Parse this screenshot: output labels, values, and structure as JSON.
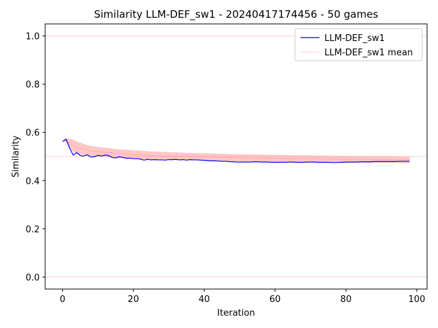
{
  "chart_data": {
    "type": "line",
    "title": "Similarity LLM-DEF_sw1 - 20240417174456 - 50 games",
    "xlabel": "Iteration",
    "ylabel": "Similarity",
    "xlim": [
      -4.9,
      102.9
    ],
    "ylim": [
      -0.05,
      1.05
    ],
    "xticks": [
      0,
      20,
      40,
      60,
      80,
      100
    ],
    "yticks": [
      0.0,
      0.2,
      0.4,
      0.6,
      0.8,
      1.0
    ],
    "xtick_labels": [
      "0",
      "20",
      "40",
      "60",
      "80",
      "100"
    ],
    "ytick_labels": [
      "0.0",
      "0.2",
      "0.4",
      "0.6",
      "0.8",
      "1.0"
    ],
    "reference_lines": [
      1.0,
      0.5,
      0.0
    ],
    "grid": false,
    "legend_position": "top-right",
    "colors": {
      "series": "#0000ff",
      "mean": "#ff8080",
      "band": "#ff9999",
      "reference": "#ffcccc"
    },
    "series": [
      {
        "name": "LLM-DEF_sw1",
        "x": [
          0,
          1,
          2,
          3,
          4,
          5,
          6,
          7,
          8,
          9,
          10,
          11,
          12,
          13,
          14,
          15,
          16,
          17,
          18,
          19,
          20,
          21,
          22,
          23,
          24,
          25,
          26,
          27,
          28,
          29,
          30,
          31,
          32,
          33,
          34,
          35,
          36,
          37,
          38,
          39,
          40,
          41,
          42,
          43,
          44,
          45,
          46,
          47,
          48,
          49,
          50,
          51,
          52,
          53,
          54,
          55,
          56,
          57,
          58,
          59,
          60,
          61,
          62,
          63,
          64,
          65,
          66,
          67,
          68,
          69,
          70,
          71,
          72,
          73,
          74,
          75,
          76,
          77,
          78,
          79,
          80,
          81,
          82,
          83,
          84,
          85,
          86,
          87,
          88,
          89,
          90,
          91,
          92,
          93,
          94,
          95,
          96,
          97,
          98
        ],
        "values": [
          0.562,
          0.572,
          0.535,
          0.506,
          0.516,
          0.504,
          0.502,
          0.507,
          0.498,
          0.499,
          0.505,
          0.502,
          0.506,
          0.504,
          0.496,
          0.494,
          0.499,
          0.496,
          0.493,
          0.493,
          0.491,
          0.491,
          0.489,
          0.485,
          0.488,
          0.486,
          0.487,
          0.486,
          0.486,
          0.485,
          0.487,
          0.487,
          0.488,
          0.486,
          0.487,
          0.485,
          0.487,
          0.486,
          0.486,
          0.485,
          0.484,
          0.483,
          0.482,
          0.482,
          0.481,
          0.48,
          0.48,
          0.479,
          0.478,
          0.477,
          0.477,
          0.477,
          0.477,
          0.477,
          0.478,
          0.478,
          0.477,
          0.477,
          0.477,
          0.476,
          0.476,
          0.476,
          0.476,
          0.476,
          0.477,
          0.477,
          0.476,
          0.476,
          0.476,
          0.477,
          0.477,
          0.477,
          0.476,
          0.476,
          0.476,
          0.476,
          0.475,
          0.475,
          0.476,
          0.476,
          0.477,
          0.477,
          0.477,
          0.477,
          0.478,
          0.478,
          0.478,
          0.478,
          0.479,
          0.479,
          0.479,
          0.479,
          0.479,
          0.479,
          0.479,
          0.48,
          0.48,
          0.48,
          0.48
        ]
      },
      {
        "name": "LLM-DEF_sw1 mean",
        "x": [
          0,
          1,
          2,
          3,
          4,
          5,
          6,
          7,
          8,
          9,
          10,
          11,
          12,
          13,
          14,
          15,
          16,
          17,
          18,
          19,
          20,
          21,
          22,
          23,
          24,
          25,
          26,
          27,
          28,
          29,
          30,
          31,
          32,
          33,
          34,
          35,
          36,
          37,
          38,
          39,
          40,
          41,
          42,
          43,
          44,
          45,
          46,
          47,
          48,
          49,
          50,
          51,
          52,
          53,
          54,
          55,
          56,
          57,
          58,
          59,
          60,
          61,
          62,
          63,
          64,
          65,
          66,
          67,
          68,
          69,
          70,
          71,
          72,
          73,
          74,
          75,
          76,
          77,
          78,
          79,
          80,
          81,
          82,
          83,
          84,
          85,
          86,
          87,
          88,
          89,
          90,
          91,
          92,
          93,
          94,
          95,
          96,
          97,
          98
        ],
        "values": [
          0.562,
          0.567,
          0.556,
          0.544,
          0.538,
          0.533,
          0.529,
          0.527,
          0.524,
          0.521,
          0.52,
          0.518,
          0.517,
          0.516,
          0.515,
          0.513,
          0.512,
          0.511,
          0.51,
          0.509,
          0.508,
          0.507,
          0.507,
          0.506,
          0.505,
          0.504,
          0.504,
          0.503,
          0.503,
          0.502,
          0.502,
          0.501,
          0.501,
          0.5,
          0.5,
          0.5,
          0.499,
          0.499,
          0.499,
          0.498,
          0.498,
          0.498,
          0.497,
          0.497,
          0.497,
          0.496,
          0.496,
          0.496,
          0.495,
          0.495,
          0.495,
          0.494,
          0.494,
          0.494,
          0.494,
          0.493,
          0.493,
          0.493,
          0.493,
          0.492,
          0.492,
          0.492,
          0.492,
          0.491,
          0.491,
          0.491,
          0.491,
          0.491,
          0.49,
          0.49,
          0.49,
          0.49,
          0.49,
          0.489,
          0.489,
          0.489,
          0.489,
          0.489,
          0.489,
          0.488,
          0.488,
          0.488,
          0.488,
          0.488,
          0.488,
          0.488,
          0.487,
          0.487,
          0.487,
          0.487,
          0.487,
          0.487,
          0.487,
          0.487,
          0.487,
          0.486,
          0.486,
          0.486,
          0.486
        ],
        "band_upper": [
          0.562,
          0.575,
          0.574,
          0.569,
          0.563,
          0.557,
          0.552,
          0.548,
          0.545,
          0.542,
          0.54,
          0.538,
          0.536,
          0.535,
          0.533,
          0.531,
          0.53,
          0.529,
          0.528,
          0.527,
          0.526,
          0.525,
          0.524,
          0.523,
          0.522,
          0.521,
          0.521,
          0.52,
          0.519,
          0.519,
          0.518,
          0.517,
          0.517,
          0.516,
          0.516,
          0.515,
          0.515,
          0.514,
          0.514,
          0.513,
          0.513,
          0.513,
          0.512,
          0.512,
          0.511,
          0.511,
          0.511,
          0.51,
          0.51,
          0.51,
          0.509,
          0.509,
          0.509,
          0.508,
          0.508,
          0.508,
          0.508,
          0.507,
          0.507,
          0.507,
          0.507,
          0.506,
          0.506,
          0.506,
          0.506,
          0.505,
          0.505,
          0.505,
          0.505,
          0.505,
          0.504,
          0.504,
          0.504,
          0.504,
          0.504,
          0.503,
          0.503,
          0.503,
          0.503,
          0.503,
          0.503,
          0.502,
          0.502,
          0.502,
          0.502,
          0.502,
          0.502,
          0.501,
          0.501,
          0.501,
          0.501,
          0.501,
          0.501,
          0.501,
          0.5,
          0.5,
          0.5,
          0.5,
          0.5
        ],
        "band_lower": [
          0.562,
          0.56,
          0.538,
          0.519,
          0.513,
          0.509,
          0.506,
          0.506,
          0.503,
          0.5,
          0.5,
          0.498,
          0.498,
          0.497,
          0.497,
          0.495,
          0.494,
          0.493,
          0.492,
          0.491,
          0.49,
          0.489,
          0.49,
          0.489,
          0.488,
          0.487,
          0.487,
          0.486,
          0.487,
          0.485,
          0.486,
          0.485,
          0.485,
          0.484,
          0.484,
          0.485,
          0.483,
          0.484,
          0.484,
          0.483,
          0.483,
          0.483,
          0.482,
          0.482,
          0.483,
          0.481,
          0.481,
          0.482,
          0.48,
          0.48,
          0.481,
          0.479,
          0.479,
          0.48,
          0.48,
          0.478,
          0.478,
          0.479,
          0.479,
          0.477,
          0.477,
          0.478,
          0.478,
          0.476,
          0.476,
          0.477,
          0.477,
          0.477,
          0.475,
          0.475,
          0.476,
          0.476,
          0.476,
          0.474,
          0.474,
          0.475,
          0.475,
          0.475,
          0.475,
          0.473,
          0.473,
          0.474,
          0.474,
          0.474,
          0.474,
          0.474,
          0.472,
          0.472,
          0.473,
          0.473,
          0.473,
          0.473,
          0.473,
          0.473,
          0.474,
          0.472,
          0.472,
          0.472,
          0.472
        ]
      }
    ]
  }
}
